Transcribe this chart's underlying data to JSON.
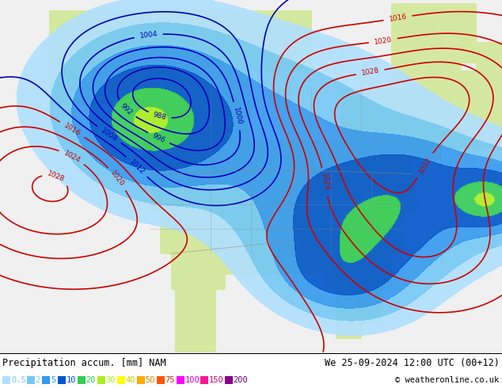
{
  "title_left": "Precipitation accum. [mm] NAM",
  "title_right": "We 25-09-2024 12:00 UTC (00+12)",
  "copyright": "© weatheronline.co.uk",
  "legend_values": [
    "0.5",
    "2",
    "5",
    "10",
    "20",
    "30",
    "40",
    "50",
    "75",
    "100",
    "150",
    "200"
  ],
  "legend_colors": [
    "#b0e0ff",
    "#74c8f5",
    "#3399ee",
    "#0055cc",
    "#33cc55",
    "#aaee22",
    "#ffff00",
    "#ffaa00",
    "#ff5500",
    "#ff00ff",
    "#ff1493",
    "#880088"
  ],
  "legend_text_colors": [
    "#74c8f5",
    "#74c8f5",
    "#3399ee",
    "#0055cc",
    "#33cc55",
    "#aaee22",
    "#cccc00",
    "#cc8800",
    "#cc3300",
    "#cc00cc",
    "#cc0066",
    "#660066"
  ],
  "precip_colors": [
    "#b0e0ff",
    "#74c8f5",
    "#3399ee",
    "#0055cc",
    "#33cc55",
    "#aaee22",
    "#ffff00",
    "#ffaa00",
    "#ff5500",
    "#ff00ff",
    "#ff1493",
    "#880088"
  ],
  "precip_levels": [
    0.5,
    2,
    5,
    10,
    20,
    30,
    40,
    50,
    75,
    100,
    150,
    200,
    500
  ],
  "land_color": "#d4e8a0",
  "ocean_color": "#f0f0f0",
  "contour_low_color": "#0000bb",
  "contour_high_color": "#cc0000",
  "border_color": "#888888",
  "figsize": [
    6.34,
    4.9
  ],
  "dpi": 100,
  "font": "monospace"
}
